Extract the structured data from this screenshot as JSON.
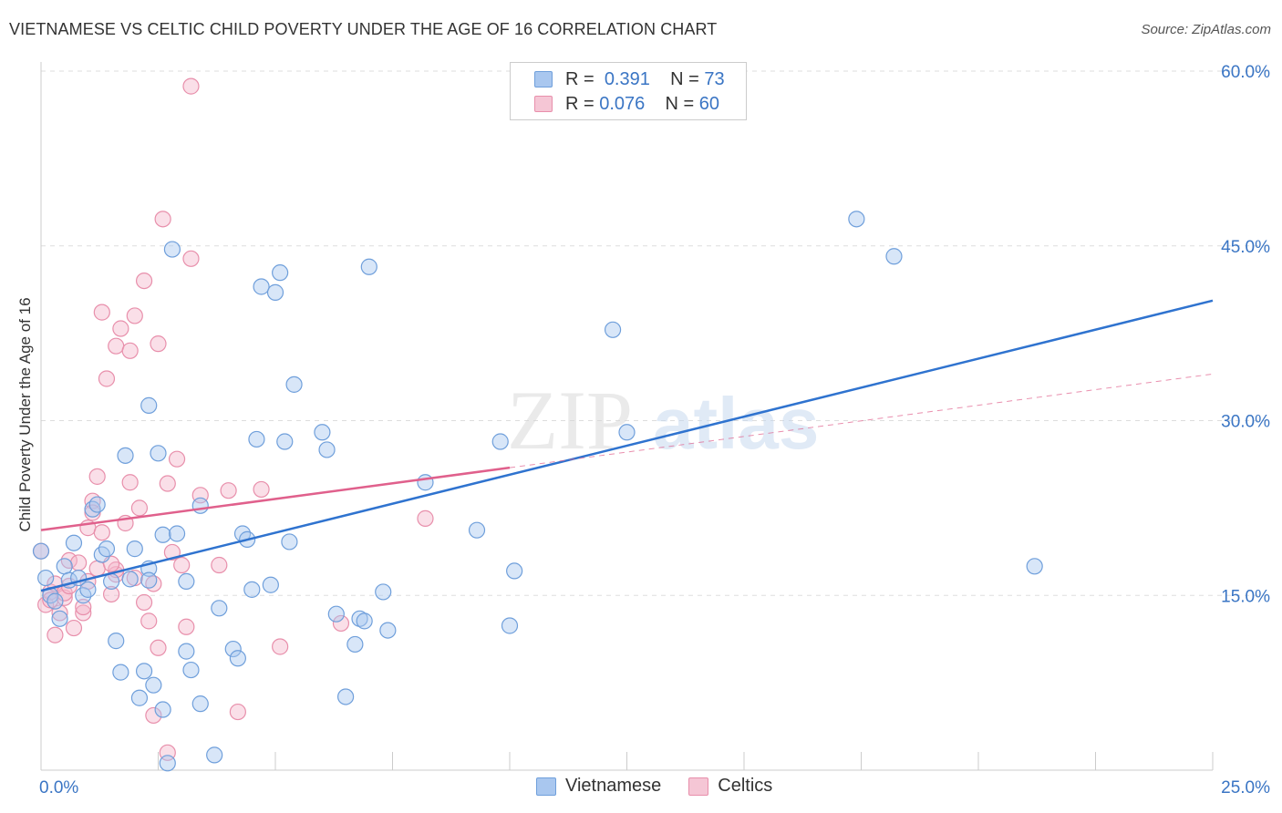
{
  "header": {
    "title": "VIETNAMESE VS CELTIC CHILD POVERTY UNDER THE AGE OF 16 CORRELATION CHART",
    "source": "Source: ZipAtlas.com"
  },
  "legend": {
    "rows": [
      {
        "r_label": "R =",
        "r_value": "0.391",
        "n_label": "N =",
        "n_value": "73"
      },
      {
        "r_label": "R =",
        "r_value": "0.076",
        "n_label": "N =",
        "n_value": "60"
      }
    ]
  },
  "bottom_legend": [
    "Vietnamese",
    "Celtics"
  ],
  "watermark": {
    "part1": "ZIP",
    "part2": "atlas"
  },
  "colors": {
    "blue_fill": "#a9c7ef",
    "blue_stroke": "#6f9fdb",
    "blue_line": "#2f73cf",
    "pink_fill": "#f5b8cb",
    "pink_stroke": "#e88fab",
    "pink_line": "#e0608c",
    "tick_label": "#3a75c4",
    "grid": "#dddddd"
  },
  "chart_data": {
    "type": "scatter",
    "title": "VIETNAMESE VS CELTIC CHILD POVERTY UNDER THE AGE OF 16 CORRELATION CHART",
    "xlabel": "",
    "ylabel": "Child Poverty Under the Age of 16",
    "xlim": [
      0,
      25
    ],
    "ylim": [
      0,
      60
    ],
    "x_tick_labels": [
      "0.0%",
      "25.0%"
    ],
    "y_ticks": [
      15,
      30,
      45,
      60
    ],
    "y_tick_labels": [
      "15.0%",
      "30.0%",
      "45.0%",
      "60.0%"
    ],
    "grid": true,
    "legend_position": "top-center",
    "series": [
      {
        "name": "Vietnamese",
        "r": 0.391,
        "n": 73,
        "trend": {
          "x0": 0,
          "y0": 15.4,
          "x1": 25,
          "y1": 40.3,
          "solid_until": 25
        },
        "points": [
          [
            0.0,
            18.8
          ],
          [
            0.1,
            16.5
          ],
          [
            0.2,
            15.0
          ],
          [
            0.3,
            14.5
          ],
          [
            0.4,
            13.0
          ],
          [
            0.5,
            17.5
          ],
          [
            0.6,
            16.3
          ],
          [
            0.7,
            19.5
          ],
          [
            0.8,
            16.5
          ],
          [
            0.9,
            15.0
          ],
          [
            1.0,
            15.5
          ],
          [
            1.1,
            22.4
          ],
          [
            1.2,
            22.8
          ],
          [
            1.3,
            18.5
          ],
          [
            1.4,
            19.0
          ],
          [
            1.5,
            16.2
          ],
          [
            1.6,
            11.1
          ],
          [
            1.7,
            8.4
          ],
          [
            1.8,
            27.0
          ],
          [
            1.9,
            16.4
          ],
          [
            2.0,
            19.0
          ],
          [
            2.1,
            6.2
          ],
          [
            2.2,
            8.5
          ],
          [
            2.3,
            17.3
          ],
          [
            2.3,
            16.3
          ],
          [
            2.4,
            7.3
          ],
          [
            2.3,
            31.3
          ],
          [
            2.5,
            27.2
          ],
          [
            2.6,
            20.2
          ],
          [
            2.6,
            5.2
          ],
          [
            2.7,
            0.6
          ],
          [
            2.8,
            44.7
          ],
          [
            2.9,
            20.3
          ],
          [
            3.1,
            10.2
          ],
          [
            3.1,
            16.2
          ],
          [
            3.2,
            8.6
          ],
          [
            3.4,
            22.7
          ],
          [
            3.4,
            5.7
          ],
          [
            3.7,
            1.3
          ],
          [
            3.8,
            13.9
          ],
          [
            4.1,
            10.4
          ],
          [
            4.2,
            9.6
          ],
          [
            4.3,
            20.3
          ],
          [
            4.4,
            19.8
          ],
          [
            4.5,
            15.5
          ],
          [
            4.6,
            28.4
          ],
          [
            4.7,
            41.5
          ],
          [
            4.9,
            15.9
          ],
          [
            5.0,
            41.0
          ],
          [
            5.1,
            42.7
          ],
          [
            5.2,
            28.2
          ],
          [
            5.3,
            19.6
          ],
          [
            5.4,
            33.1
          ],
          [
            6.0,
            29.0
          ],
          [
            6.1,
            27.5
          ],
          [
            6.3,
            13.4
          ],
          [
            6.5,
            6.3
          ],
          [
            6.7,
            10.8
          ],
          [
            6.8,
            13.0
          ],
          [
            6.9,
            12.8
          ],
          [
            7.0,
            43.2
          ],
          [
            7.3,
            15.3
          ],
          [
            7.4,
            12.0
          ],
          [
            8.2,
            24.7
          ],
          [
            9.3,
            20.6
          ],
          [
            9.8,
            28.2
          ],
          [
            10.0,
            12.4
          ],
          [
            10.1,
            17.1
          ],
          [
            12.2,
            37.8
          ],
          [
            12.5,
            29.0
          ],
          [
            17.4,
            47.3
          ],
          [
            18.2,
            44.1
          ],
          [
            21.2,
            17.5
          ]
        ]
      },
      {
        "name": "Celtics",
        "r": 0.076,
        "n": 60,
        "trend": {
          "x0": 0,
          "y0": 20.6,
          "x1": 25,
          "y1": 34.0,
          "solid_until": 10
        },
        "points": [
          [
            0.0,
            18.8
          ],
          [
            0.1,
            14.2
          ],
          [
            0.2,
            15.3
          ],
          [
            0.2,
            14.6
          ],
          [
            0.3,
            11.6
          ],
          [
            0.3,
            16.0
          ],
          [
            0.4,
            13.5
          ],
          [
            0.5,
            14.8
          ],
          [
            0.5,
            15.2
          ],
          [
            0.6,
            18.0
          ],
          [
            0.7,
            12.2
          ],
          [
            0.8,
            17.8
          ],
          [
            0.9,
            13.5
          ],
          [
            1.0,
            20.8
          ],
          [
            1.0,
            16.2
          ],
          [
            1.1,
            23.1
          ],
          [
            1.1,
            22.1
          ],
          [
            1.2,
            25.2
          ],
          [
            1.2,
            17.3
          ],
          [
            1.3,
            20.4
          ],
          [
            1.4,
            33.6
          ],
          [
            1.5,
            15.1
          ],
          [
            1.6,
            16.8
          ],
          [
            1.6,
            36.4
          ],
          [
            1.6,
            17.2
          ],
          [
            1.7,
            37.9
          ],
          [
            1.8,
            21.2
          ],
          [
            1.9,
            36.0
          ],
          [
            1.9,
            24.7
          ],
          [
            2.0,
            39.0
          ],
          [
            2.1,
            22.5
          ],
          [
            2.2,
            42.0
          ],
          [
            2.2,
            14.4
          ],
          [
            2.3,
            12.8
          ],
          [
            2.4,
            4.7
          ],
          [
            2.5,
            10.5
          ],
          [
            2.5,
            36.6
          ],
          [
            2.6,
            47.3
          ],
          [
            2.7,
            24.6
          ],
          [
            2.7,
            1.5
          ],
          [
            2.8,
            18.7
          ],
          [
            2.9,
            26.7
          ],
          [
            3.0,
            17.6
          ],
          [
            3.1,
            12.3
          ],
          [
            3.2,
            58.7
          ],
          [
            3.2,
            43.9
          ],
          [
            3.4,
            23.6
          ],
          [
            3.8,
            17.6
          ],
          [
            4.0,
            24.0
          ],
          [
            4.2,
            5.0
          ],
          [
            4.7,
            24.1
          ],
          [
            5.1,
            10.6
          ],
          [
            6.4,
            12.6
          ],
          [
            8.2,
            21.6
          ],
          [
            1.3,
            39.3
          ],
          [
            0.6,
            15.8
          ],
          [
            0.9,
            14.0
          ],
          [
            1.5,
            17.7
          ],
          [
            2.0,
            16.5
          ],
          [
            2.4,
            16.0
          ]
        ]
      }
    ]
  }
}
